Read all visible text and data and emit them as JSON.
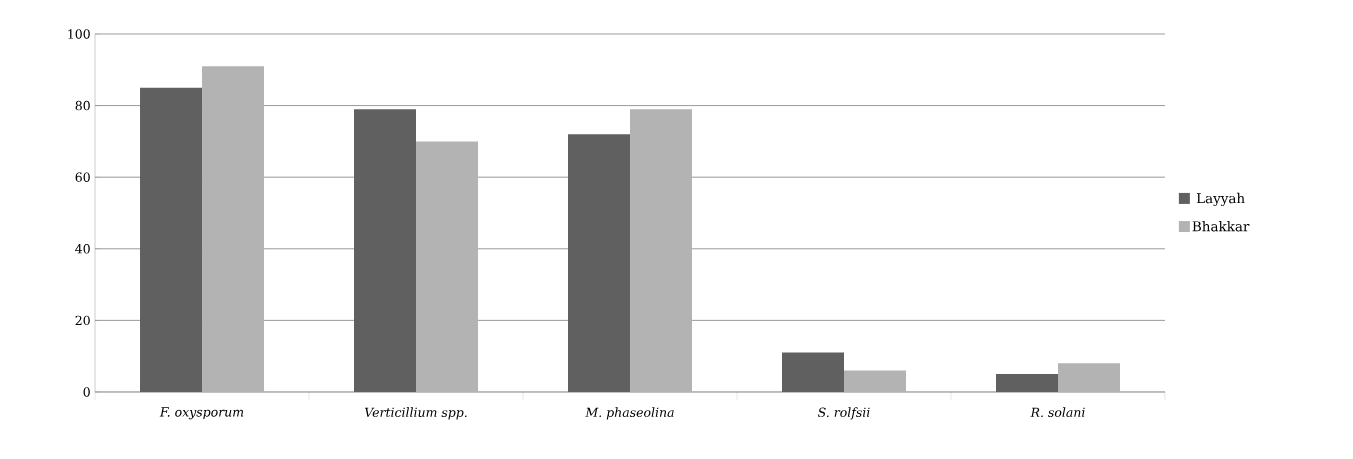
{
  "chart_data": {
    "type": "bar",
    "categories": [
      "F. oxysporum",
      "Verticillium spp.",
      "M. phaseolina",
      "S. rolfsii",
      "R. solani"
    ],
    "series": [
      {
        "name": "Layyah",
        "color": "#606060",
        "values": [
          85,
          79,
          72,
          11,
          5
        ]
      },
      {
        "name": "Bhakkar",
        "color": "#b3b3b3",
        "values": [
          91,
          70,
          79,
          6,
          8
        ]
      }
    ],
    "ylim": [
      0,
      100
    ],
    "yticks": [
      0,
      20,
      40,
      60,
      80,
      100
    ],
    "grid": "y",
    "legend": "right"
  }
}
